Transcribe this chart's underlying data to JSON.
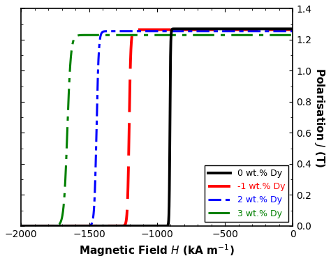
{
  "title": "",
  "xlabel": "Magnetic Field $H$ (kA m$^{-1}$)",
  "ylabel": "Polarisation $J$ (T)",
  "xlim": [
    -2000,
    0
  ],
  "ylim": [
    0.0,
    1.4
  ],
  "xticks": [
    -2000,
    -1500,
    -1000,
    -500,
    0
  ],
  "yticks": [
    0.0,
    0.2,
    0.4,
    0.6,
    0.8,
    1.0,
    1.2,
    1.4
  ],
  "curves": [
    {
      "label": "0 wt.% Dy",
      "color": "black",
      "linewidth": 2.8,
      "coercivity": -905,
      "Jsat": 1.27,
      "sharpness": 350
    },
    {
      "label": "-1 wt.% Dy",
      "color": "red",
      "linewidth": 2.8,
      "coercivity": -1205,
      "Jsat": 1.265,
      "sharpness": 200
    },
    {
      "label": "2 wt.% Dy",
      "color": "blue",
      "linewidth": 2.2,
      "coercivity": -1445,
      "Jsat": 1.255,
      "sharpness": 180
    },
    {
      "label": "3 wt.% Dy",
      "color": "green",
      "linewidth": 2.2,
      "coercivity": -1660,
      "Jsat": 1.23,
      "sharpness": 130
    }
  ],
  "legend_loc": "lower right",
  "legend_fontsize": 9,
  "tick_fontsize": 10,
  "label_fontsize": 11,
  "background_color": "#ffffff"
}
